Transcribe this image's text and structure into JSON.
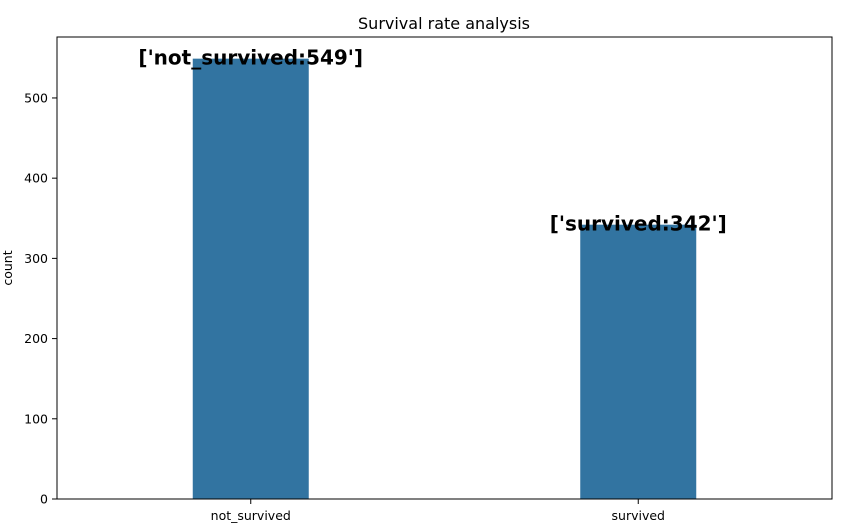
{
  "chart_data": {
    "type": "bar",
    "title": "Survival rate analysis",
    "xlabel": "",
    "ylabel": "count",
    "categories": [
      "not_survived",
      "survived"
    ],
    "values": [
      549,
      342
    ],
    "bar_labels": [
      "['not_survived:549']",
      "['survived:342']"
    ],
    "ylim": [
      0,
      576
    ],
    "yticks": [
      0,
      100,
      200,
      300,
      400,
      500
    ],
    "bar_color": "#3274a1",
    "grid": false,
    "legend": "none"
  }
}
